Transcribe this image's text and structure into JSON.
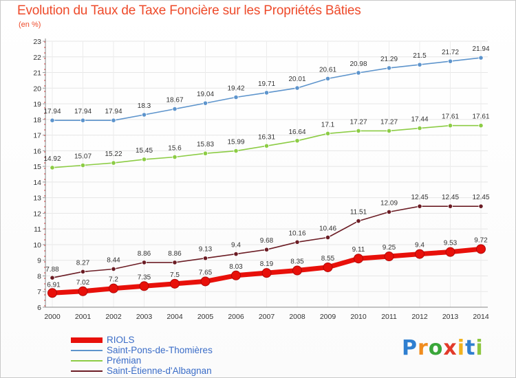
{
  "chart_data": {
    "type": "line",
    "title": "Evolution du Taux de Taxe Foncière sur les Propriétés Bâties",
    "units": "(en %)",
    "xlabel": "",
    "ylabel": "",
    "ylim": [
      6,
      23
    ],
    "yticks": [
      6,
      7,
      8,
      9,
      10,
      11,
      12,
      13,
      14,
      15,
      16,
      17,
      18,
      19,
      20,
      21,
      22,
      23
    ],
    "x": [
      2000,
      2001,
      2002,
      2003,
      2004,
      2005,
      2006,
      2007,
      2008,
      2009,
      2010,
      2011,
      2012,
      2013,
      2014
    ],
    "series": [
      {
        "name": "RIOLS",
        "color": "#e8100a",
        "values": [
          6.91,
          7.02,
          7.2,
          7.35,
          7.5,
          7.65,
          8.03,
          8.19,
          8.35,
          8.55,
          9.11,
          9.25,
          9.4,
          9.53,
          9.72
        ]
      },
      {
        "name": "Saint-Pons-de-Thomières",
        "color": "#5d94cc",
        "values": [
          17.94,
          17.94,
          17.94,
          18.3,
          18.67,
          19.04,
          19.42,
          19.71,
          20.01,
          20.61,
          20.98,
          21.29,
          21.5,
          21.72,
          21.94
        ]
      },
      {
        "name": "Prémian",
        "color": "#8ccc44",
        "values": [
          14.92,
          15.07,
          15.22,
          15.45,
          15.6,
          15.83,
          15.99,
          16.31,
          16.64,
          17.1,
          17.27,
          17.27,
          17.44,
          17.61,
          17.61
        ]
      },
      {
        "name": "Saint-Étienne-d'Albagnan",
        "color": "#6b1c24",
        "values": [
          7.88,
          8.27,
          8.44,
          8.86,
          8.86,
          9.13,
          9.4,
          9.68,
          10.16,
          10.46,
          11.51,
          12.09,
          12.45,
          12.45,
          12.45
        ]
      }
    ],
    "legend": "bottom-left"
  },
  "brand": {
    "letters": [
      "P",
      "r",
      "o",
      "x",
      "i",
      "t",
      "i"
    ],
    "colors": [
      "#2f7fd0",
      "#f08c1e",
      "#3aa63a",
      "#e23a2a",
      "#f0b21e",
      "#2f7fd0",
      "#8cc63f"
    ]
  }
}
